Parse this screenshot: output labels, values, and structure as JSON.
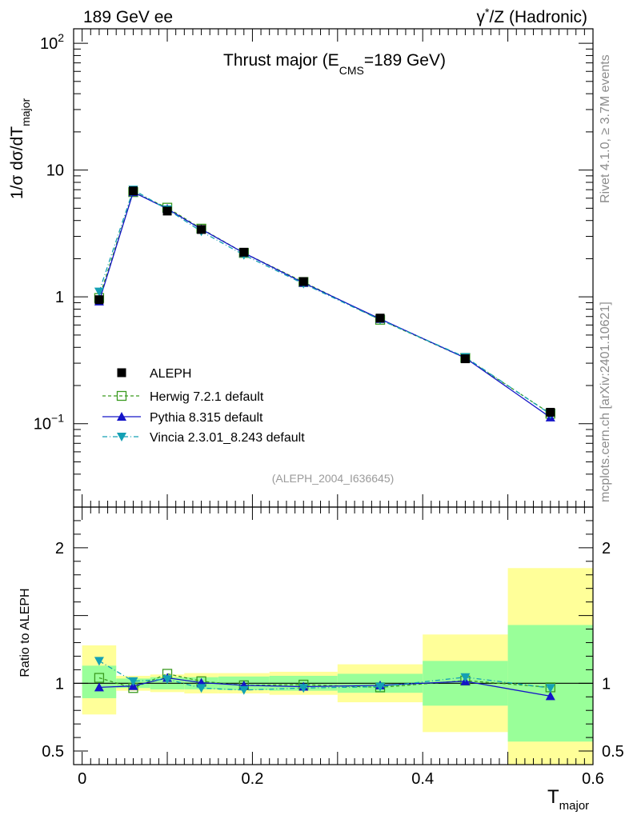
{
  "chart_data": {
    "type": "line",
    "header_left": "189 GeV ee",
    "header_right": {
      "base": "γ*/Z (Hadronic)",
      "gamma": "γ",
      "star": "*",
      "rest": "/Z (Hadronic)"
    },
    "title": {
      "full": "Thrust major (E_CMS=189 GeV)",
      "pre": "Thrust major (E",
      "sub": "CMS",
      "post": "=189 GeV)"
    },
    "ylabel": {
      "full": "1/σ dσ/dT_major",
      "pre": "1/σ  dσ/dT",
      "sub": "major"
    },
    "xlabel": {
      "full": "T_major",
      "main": "T",
      "sub": "major"
    },
    "ratio_ylabel": "Ratio to ALEPH",
    "side_label_1": "Rivet 4.1.0, ≥ 3.7M events",
    "side_label_2": "mcplots.cern.ch [arXiv:2401.10621]",
    "analysis_ref": "(ALEPH_2004_I636645)",
    "xlim": [
      -0.01,
      0.6
    ],
    "ylim_main": [
      0.022,
      130
    ],
    "ylim_ratio": [
      0.4,
      2.3
    ],
    "x_ticks": [
      "0",
      "0.2",
      "0.4",
      "0.6"
    ],
    "y_ticks_main": [
      {
        "value": 100,
        "label": "10",
        "exp": "2"
      },
      {
        "value": 10,
        "label": "10",
        "exp": ""
      },
      {
        "value": 1,
        "label": "1",
        "exp": ""
      },
      {
        "value": 0.1,
        "label": "10",
        "exp": "−1"
      }
    ],
    "y_ticks_ratio": [
      {
        "value": 2,
        "label": "2"
      },
      {
        "value": 1,
        "label": "1"
      },
      {
        "value": 0.5,
        "label": "0.5"
      }
    ],
    "bins": [
      {
        "lo": 0.0,
        "hi": 0.04,
        "y": 0.95,
        "g": [
          0.89,
          1.13
        ],
        "t": [
          0.77,
          1.28
        ]
      },
      {
        "lo": 0.04,
        "hi": 0.08,
        "y": 6.85,
        "g": [
          0.965,
          1.035
        ],
        "t": [
          0.945,
          1.055
        ]
      },
      {
        "lo": 0.08,
        "hi": 0.12,
        "y": 4.75,
        "g": [
          0.955,
          1.045
        ],
        "t": [
          0.935,
          1.065
        ]
      },
      {
        "lo": 0.12,
        "hi": 0.16,
        "y": 3.4,
        "g": [
          0.955,
          1.045
        ],
        "t": [
          0.925,
          1.075
        ]
      },
      {
        "lo": 0.16,
        "hi": 0.22,
        "y": 2.25,
        "g": [
          0.95,
          1.05
        ],
        "t": [
          0.925,
          1.075
        ]
      },
      {
        "lo": 0.22,
        "hi": 0.3,
        "y": 1.32,
        "g": [
          0.945,
          1.055
        ],
        "t": [
          0.915,
          1.085
        ]
      },
      {
        "lo": 0.3,
        "hi": 0.4,
        "y": 0.68,
        "g": [
          0.93,
          1.07
        ],
        "t": [
          0.86,
          1.14
        ]
      },
      {
        "lo": 0.4,
        "hi": 0.5,
        "y": 0.325,
        "g": [
          0.835,
          1.165
        ],
        "t": [
          0.64,
          1.36
        ]
      },
      {
        "lo": 0.5,
        "hi": 0.6,
        "y": 0.123,
        "g": [
          0.57,
          1.43
        ],
        "t": [
          0.3,
          1.85
        ]
      }
    ],
    "series": [
      {
        "name": "ALEPH",
        "color": "#000000",
        "marker": "square-filled",
        "x": [
          0.02,
          0.06,
          0.1,
          0.14,
          0.19,
          0.26,
          0.35,
          0.45,
          0.55
        ],
        "y": [
          0.95,
          6.85,
          4.75,
          3.4,
          2.25,
          1.32,
          0.68,
          0.325,
          0.123
        ]
      },
      {
        "name": "Herwig 7.2.1 default",
        "color": "#3a9a1f",
        "marker": "square-open",
        "dash": "4,3",
        "x": [
          0.02,
          0.06,
          0.1,
          0.14,
          0.19,
          0.26,
          0.35,
          0.45,
          0.55
        ],
        "y": [
          0.98,
          6.7,
          5.05,
          3.45,
          2.22,
          1.31,
          0.66,
          0.33,
          0.12
        ],
        "ratio": [
          1.04,
          0.965,
          1.07,
          1.015,
          0.985,
          0.99,
          0.97,
          1.02,
          0.97
        ]
      },
      {
        "name": "Pythia 8.315 default",
        "color": "#1414c8",
        "marker": "triangle-up",
        "x": [
          0.02,
          0.06,
          0.1,
          0.14,
          0.19,
          0.26,
          0.35,
          0.45,
          0.55
        ],
        "y": [
          0.92,
          6.7,
          4.95,
          3.42,
          2.22,
          1.29,
          0.67,
          0.33,
          0.112
        ],
        "ratio": [
          0.97,
          0.98,
          1.04,
          1.005,
          0.985,
          0.975,
          0.985,
          1.015,
          0.905
        ]
      },
      {
        "name": "Vincia 2.3.01_8.243 default",
        "color": "#14a0b4",
        "marker": "triangle-down",
        "dash": "6,3,1,3",
        "x": [
          0.02,
          0.06,
          0.1,
          0.14,
          0.19,
          0.26,
          0.35,
          0.45,
          0.55
        ],
        "y": [
          1.1,
          7.0,
          4.9,
          3.28,
          2.14,
          1.27,
          0.66,
          0.335,
          0.119
        ],
        "ratio": [
          1.165,
          1.015,
          1.03,
          0.965,
          0.95,
          0.965,
          0.975,
          1.045,
          0.965
        ]
      }
    ]
  }
}
